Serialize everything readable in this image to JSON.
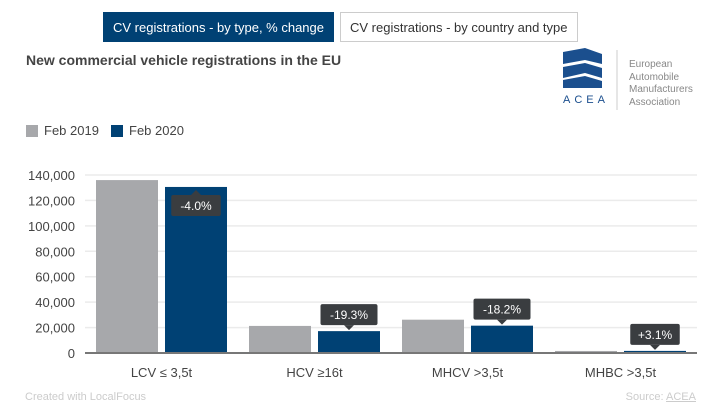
{
  "tabs": [
    {
      "label": "CV registrations - by type, % change",
      "active": true
    },
    {
      "label": "CV registrations - by country and type",
      "active": false
    }
  ],
  "logo": {
    "acronym": "ACEA",
    "lines": [
      "European",
      "Automobile",
      "Manufacturers",
      "Association"
    ]
  },
  "footer": {
    "credit": "Created with LocalFocus",
    "source_label": "Source:",
    "source_link": "ACEA"
  },
  "chart_data": {
    "type": "bar",
    "title": "New commercial vehicle registrations in the EU",
    "categories": [
      "LCV ≤ 3,5t",
      "HCV ≥16t",
      "MHCV >3,5t",
      "MHBC >3,5t"
    ],
    "series": [
      {
        "name": "Feb 2019",
        "color": "#a7a8ab",
        "values": [
          136000,
          21300,
          26200,
          1600
        ]
      },
      {
        "name": "Feb 2020",
        "color": "#004174",
        "values": [
          130600,
          17200,
          21500,
          1650
        ]
      }
    ],
    "annotations": [
      "-4.0%",
      "-19.3%",
      "-18.2%",
      "+3.1%"
    ],
    "yticks": [
      "0",
      "20,000",
      "40,000",
      "60,000",
      "80,000",
      "100,000",
      "120,000",
      "140,000"
    ],
    "ylim": [
      0,
      140000
    ],
    "grid": true,
    "legend": "top-left"
  }
}
